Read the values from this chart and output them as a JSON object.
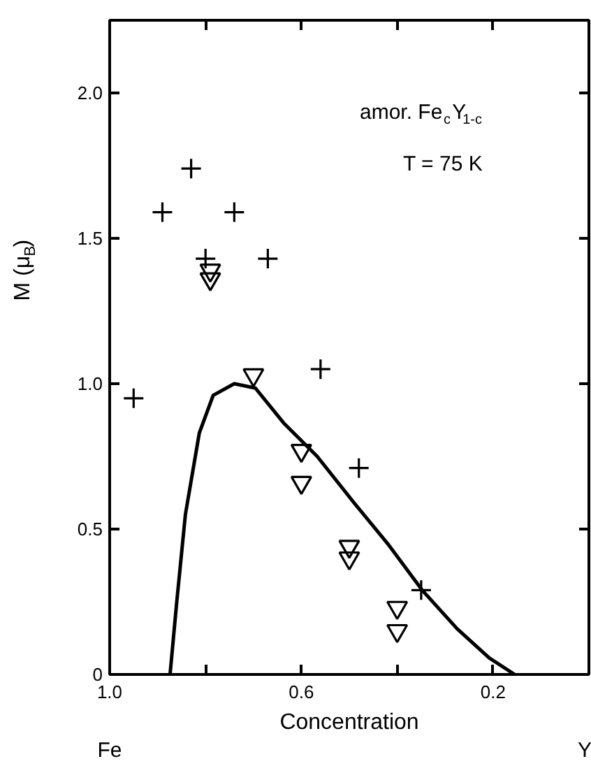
{
  "chart_data": {
    "type": "scatter",
    "xlabel": "Concentration",
    "ylabel": "M (μ$_{B}$)",
    "xlim": [
      1.0,
      0
    ],
    "ylim": [
      0,
      2.25
    ],
    "xticks": [
      {
        "value": 1.0,
        "label": "1.0"
      },
      {
        "value": 0.8,
        "label": null
      },
      0.6,
      {
        "value": 0.4,
        "label": null
      },
      0.2
    ],
    "yticks": [
      0,
      0.5,
      {
        "value": 1.0,
        "label": "1.0"
      },
      1.5,
      {
        "value": 2.0,
        "label": "2.0"
      }
    ],
    "annotations": [
      "amor. Fe$_{c}$Y$_{1-c}$",
      "T = 75 K",
      "Fe",
      "Y"
    ],
    "grid": false,
    "series": [
      {
        "marker": "cross",
        "color": "#000000",
        "x": [
          0.89,
          0.83,
          0.74,
          0.8,
          0.67,
          0.56,
          0.95,
          0.48,
          0.35
        ],
        "values": [
          1.59,
          1.74,
          1.59,
          1.43,
          1.43,
          1.05,
          0.95,
          0.71,
          0.29
        ]
      },
      {
        "marker": "triangle",
        "color": "#000000",
        "x": [
          0.79,
          0.79,
          0.7,
          0.6,
          0.6,
          0.5,
          0.5,
          0.4,
          0.4
        ],
        "values": [
          1.39,
          1.36,
          1.03,
          0.77,
          0.66,
          0.44,
          0.4,
          0.23,
          0.15
        ]
      },
      {
        "type": "line",
        "marker": "none",
        "line_style": "solid",
        "color": "#000000",
        "x": [
          0.874,
          0.86,
          0.842,
          0.813,
          0.784,
          0.74,
          0.696,
          0.637,
          0.567,
          0.49,
          0.42,
          0.348,
          0.275,
          0.208,
          0.155
        ],
        "values": [
          0,
          0.25,
          0.55,
          0.83,
          0.96,
          1.0,
          0.985,
          0.865,
          0.75,
          0.59,
          0.45,
          0.29,
          0.157,
          0.057,
          0
        ]
      }
    ]
  }
}
